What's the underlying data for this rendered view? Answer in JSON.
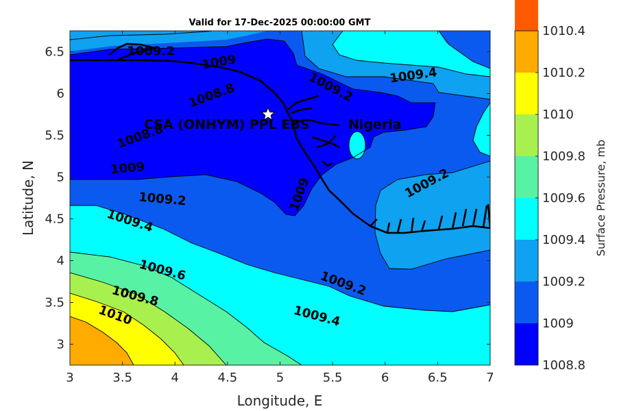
{
  "chart_data": {
    "type": "contour",
    "title": "Valid for 17-Dec-2025 00:00:00 GMT",
    "xlabel": "Longitude, E",
    "ylabel": "Latitude, N",
    "xlim": [
      3,
      7
    ],
    "ylim": [
      2.75,
      6.75
    ],
    "xticks": [
      "3",
      "3.5",
      "4",
      "4.5",
      "5",
      "5.5",
      "6",
      "6.5",
      "7"
    ],
    "yticks": [
      "3",
      "3.5",
      "4",
      "4.5",
      "5",
      "5.5",
      "6",
      "6.5"
    ],
    "colorbar": {
      "label": "Surface Pressure, mb",
      "ticks": [
        "1008.8",
        "1009",
        "1009.2",
        "1009.4",
        "1009.6",
        "1009.8",
        "1010",
        "1010.2",
        "1010.4"
      ],
      "colors": [
        "#0000ff",
        "#0b5af0",
        "#0ea2f0",
        "#00ffff",
        "#58f2a4",
        "#a8f04e",
        "#ffff00",
        "#ffab00",
        "#ff5a00"
      ]
    },
    "contour_labels": [
      {
        "text": "1009.2",
        "x": 3.77,
        "y": 6.5,
        "angle": 0
      },
      {
        "text": "1009",
        "x": 4.42,
        "y": 6.37,
        "angle": -10
      },
      {
        "text": "1009.4",
        "x": 6.27,
        "y": 6.21,
        "angle": -8
      },
      {
        "text": "1009.2",
        "x": 5.48,
        "y": 6.07,
        "angle": 28
      },
      {
        "text": "1008.8",
        "x": 4.35,
        "y": 5.97,
        "angle": -20
      },
      {
        "text": "1008.8",
        "x": 3.67,
        "y": 5.48,
        "angle": -20
      },
      {
        "text": "1009",
        "x": 3.55,
        "y": 5.1,
        "angle": -5
      },
      {
        "text": "1009.2",
        "x": 3.88,
        "y": 4.73,
        "angle": 5
      },
      {
        "text": "1009.2",
        "x": 6.4,
        "y": 4.92,
        "angle": -28
      },
      {
        "text": "1009",
        "x": 5.19,
        "y": 4.79,
        "angle": -70
      },
      {
        "text": "1009.4",
        "x": 3.57,
        "y": 4.47,
        "angle": 18
      },
      {
        "text": "1009.6",
        "x": 3.88,
        "y": 3.88,
        "angle": 15
      },
      {
        "text": "1009.2",
        "x": 5.6,
        "y": 3.72,
        "angle": 20
      },
      {
        "text": "1009.8",
        "x": 3.62,
        "y": 3.57,
        "angle": 15
      },
      {
        "text": "1010",
        "x": 3.43,
        "y": 3.34,
        "angle": 20
      },
      {
        "text": "1009.4",
        "x": 5.35,
        "y": 3.33,
        "angle": 15
      }
    ],
    "annotations": [
      {
        "text": "CSA (ONHYM) PPL EBS",
        "x": 3.72,
        "y": 5.64
      },
      {
        "text": "Nigeria",
        "x": 5.97,
        "y": 5.64
      }
    ],
    "marker": {
      "name": "star",
      "x": 4.88,
      "y": 5.75
    }
  }
}
